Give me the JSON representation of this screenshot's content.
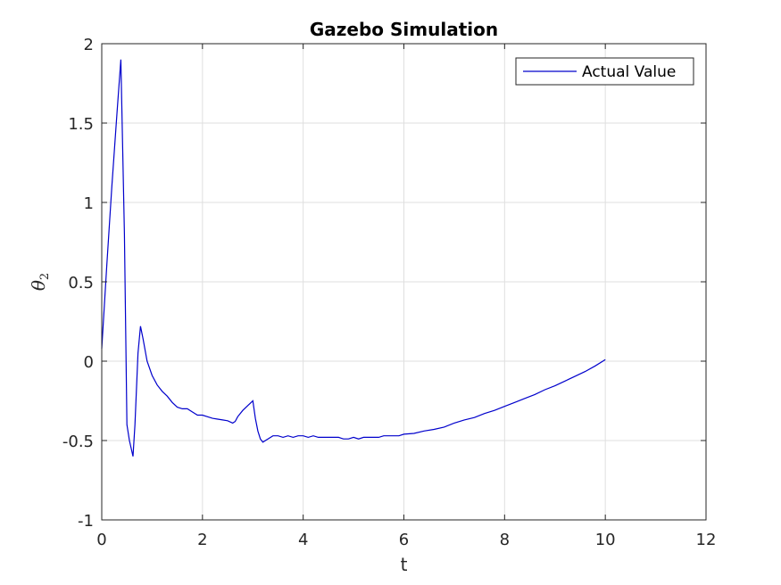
{
  "chart_data": {
    "type": "line",
    "title": "Gazebo Simulation",
    "xlabel": "t",
    "ylabel": "θ",
    "ylabel_subscript": "2",
    "xlim": [
      0,
      12
    ],
    "ylim": [
      -1,
      2
    ],
    "xticks": [
      0,
      2,
      4,
      6,
      8,
      10,
      12
    ],
    "yticks": [
      -1,
      -0.5,
      0,
      0.5,
      1,
      1.5,
      2
    ],
    "xtick_labels": [
      "0",
      "2",
      "4",
      "6",
      "8",
      "10",
      "12"
    ],
    "ytick_labels": [
      "-1",
      "-0.5",
      "0",
      "0.5",
      "1",
      "1.5",
      "2"
    ],
    "grid": true,
    "legend_position": "top-right",
    "series": [
      {
        "name": "Actual Value",
        "color": "#0000cc",
        "x": [
          0,
          0.1,
          0.2,
          0.3,
          0.38,
          0.45,
          0.5,
          0.55,
          0.62,
          0.66,
          0.72,
          0.77,
          0.82,
          0.9,
          1.0,
          1.1,
          1.2,
          1.3,
          1.4,
          1.5,
          1.6,
          1.7,
          1.8,
          1.9,
          2.0,
          2.1,
          2.2,
          2.3,
          2.4,
          2.5,
          2.6,
          2.65,
          2.7,
          2.8,
          2.9,
          3.0,
          3.05,
          3.1,
          3.15,
          3.2,
          3.3,
          3.4,
          3.5,
          3.6,
          3.7,
          3.8,
          3.9,
          4.0,
          4.1,
          4.2,
          4.3,
          4.4,
          4.5,
          4.6,
          4.7,
          4.8,
          4.9,
          5.0,
          5.1,
          5.2,
          5.3,
          5.4,
          5.5,
          5.6,
          5.7,
          5.8,
          5.9,
          6.0,
          6.2,
          6.4,
          6.6,
          6.8,
          7.0,
          7.2,
          7.4,
          7.6,
          7.8,
          8.0,
          8.2,
          8.4,
          8.6,
          8.8,
          9.0,
          9.2,
          9.4,
          9.6,
          9.8,
          10.0
        ],
        "values": [
          0.08,
          0.6,
          1.1,
          1.55,
          1.9,
          0.8,
          -0.4,
          -0.5,
          -0.6,
          -0.4,
          0.05,
          0.22,
          0.14,
          0.0,
          -0.09,
          -0.15,
          -0.19,
          -0.22,
          -0.26,
          -0.29,
          -0.3,
          -0.3,
          -0.32,
          -0.34,
          -0.34,
          -0.35,
          -0.36,
          -0.365,
          -0.37,
          -0.375,
          -0.39,
          -0.38,
          -0.35,
          -0.31,
          -0.28,
          -0.25,
          -0.36,
          -0.44,
          -0.49,
          -0.51,
          -0.49,
          -0.47,
          -0.47,
          -0.48,
          -0.47,
          -0.48,
          -0.47,
          -0.47,
          -0.48,
          -0.47,
          -0.48,
          -0.48,
          -0.48,
          -0.48,
          -0.48,
          -0.49,
          -0.49,
          -0.48,
          -0.49,
          -0.48,
          -0.48,
          -0.48,
          -0.48,
          -0.47,
          -0.47,
          -0.47,
          -0.47,
          -0.46,
          -0.455,
          -0.44,
          -0.43,
          -0.415,
          -0.39,
          -0.37,
          -0.355,
          -0.33,
          -0.31,
          -0.285,
          -0.26,
          -0.235,
          -0.21,
          -0.18,
          -0.155,
          -0.125,
          -0.095,
          -0.065,
          -0.03,
          0.01
        ]
      }
    ]
  }
}
